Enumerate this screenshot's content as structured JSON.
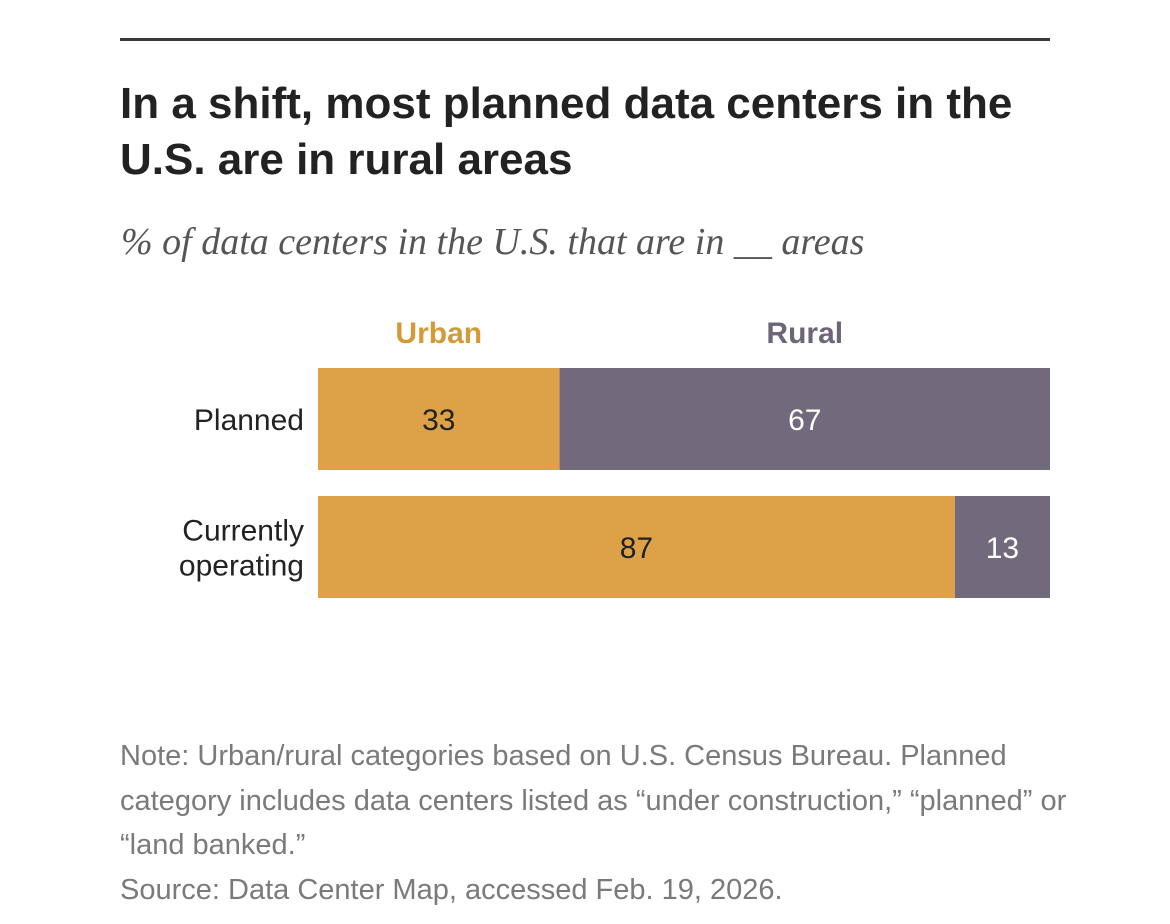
{
  "title": "In a shift, most planned data centers in the U.S. are in rural areas",
  "subtitle": "% of data centers in the U.S. that are in __ areas",
  "note": "Note: Urban/rural categories based on U.S. Census Bureau. Planned category includes data centers listed as “under construction,” “planned” or “land banked.”",
  "source": "Source: Data Center Map, accessed Feb. 19, 2026.",
  "colors": {
    "urban": "#DDA247",
    "rural": "#73697D",
    "urban_label": "#D49A3A",
    "rural_label": "#6E6578"
  },
  "chart_data": {
    "type": "bar",
    "orientation": "horizontal",
    "stacked": true,
    "categories": [
      [
        "Planned"
      ],
      [
        "Currently",
        "operating"
      ]
    ],
    "series": [
      {
        "name": "Urban",
        "values": [
          33,
          87
        ]
      },
      {
        "name": "Rural",
        "values": [
          67,
          13
        ]
      }
    ],
    "xlim": [
      0,
      100
    ],
    "grid": false,
    "legend": "top"
  }
}
